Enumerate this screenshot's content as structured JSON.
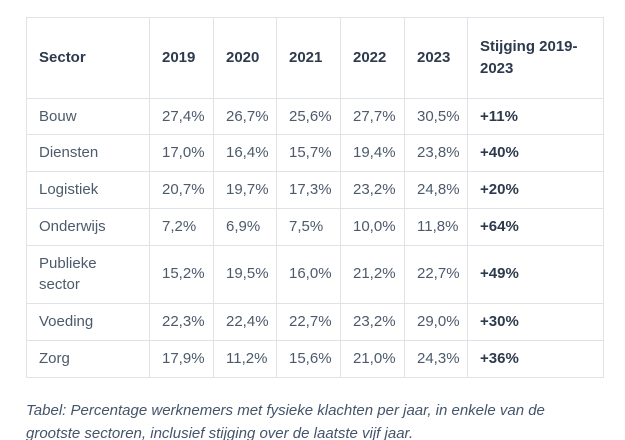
{
  "table": {
    "columns": [
      "Sector",
      "2019",
      "2020",
      "2021",
      "2022",
      "2023",
      "Stijging 2019-2023"
    ],
    "rows": [
      {
        "sector": "Bouw",
        "values": [
          "27,4%",
          "26,7%",
          "25,6%",
          "27,7%",
          "30,5%"
        ],
        "stijging": "+11%"
      },
      {
        "sector": "Diensten",
        "values": [
          "17,0%",
          "16,4%",
          "15,7%",
          "19,4%",
          "23,8%"
        ],
        "stijging": "+40%"
      },
      {
        "sector": "Logistiek",
        "values": [
          "20,7%",
          "19,7%",
          "17,3%",
          "23,2%",
          "24,8%"
        ],
        "stijging": "+20%"
      },
      {
        "sector": "Onderwijs",
        "values": [
          "7,2%",
          "6,9%",
          "7,5%",
          "10,0%",
          "11,8%"
        ],
        "stijging": "+64%"
      },
      {
        "sector": "Publieke sector",
        "values": [
          "15,2%",
          "19,5%",
          "16,0%",
          "21,2%",
          "22,7%"
        ],
        "stijging": "+49%"
      },
      {
        "sector": "Voeding",
        "values": [
          "22,3%",
          "22,4%",
          "22,7%",
          "23,2%",
          "29,0%"
        ],
        "stijging": "+30%"
      },
      {
        "sector": "Zorg",
        "values": [
          "17,9%",
          "11,2%",
          "15,6%",
          "21,0%",
          "24,3%"
        ],
        "stijging": "+36%"
      }
    ]
  },
  "caption": "Tabel: Percentage werknemers met fysieke klachten per jaar, in enkele van de grootste sectoren, inclusief stijging over de laatste vijf jaar.",
  "colors": {
    "header_text": "#2d3a4d",
    "body_text": "#4c5a6b",
    "border": "#dfe3e8",
    "background": "#ffffff"
  }
}
